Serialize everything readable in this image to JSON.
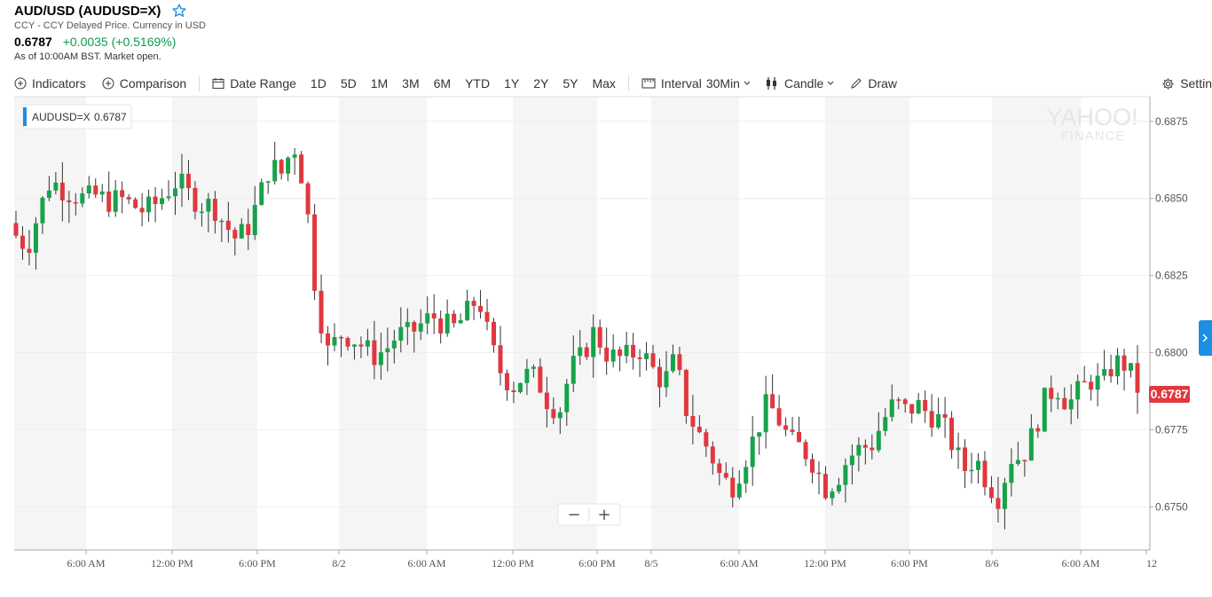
{
  "header": {
    "title": "AUD/USD (AUDUSD=X)",
    "subtitle": "CCY - CCY Delayed Price. Currency in USD",
    "price": "0.6787",
    "change": "+0.0035 (+0.5169%)",
    "as_of": "As of 10:00AM BST. Market open."
  },
  "toolbar": {
    "indicators": "Indicators",
    "comparison": "Comparison",
    "date_range": "Date Range",
    "ranges": [
      "1D",
      "5D",
      "1M",
      "3M",
      "6M",
      "YTD",
      "1Y",
      "2Y",
      "5Y",
      "Max"
    ],
    "interval_label": "Interval",
    "interval_value": "30Min",
    "chart_type": "Candle",
    "draw": "Draw",
    "settings": "Settin"
  },
  "chart_data": {
    "type": "candlestick",
    "legend_label": "AUDUSD=X",
    "legend_value": "0.6787",
    "watermark_line1": "YAHOO!",
    "watermark_line2": "FINANCE",
    "current_price_label": "0.6787",
    "ylim": [
      0.6736,
      0.6883
    ],
    "y_ticks": [
      "0.6875",
      "0.6850",
      "0.6825",
      "0.6800",
      "0.6775",
      "0.6750"
    ],
    "x_ticks": [
      "6:00 AM",
      "12:00 PM",
      "6:00 PM",
      "8/2",
      "6:00 AM",
      "12:00 PM",
      "6:00 PM",
      "8/5",
      "6:00 AM",
      "12:00 PM",
      "6:00 PM",
      "8/6",
      "6:00 AM",
      "12"
    ],
    "close_path": [
      0.6838,
      0.6834,
      0.6846,
      0.6856,
      0.6853,
      0.6851,
      0.685,
      0.6851,
      0.6849,
      0.685,
      0.6848,
      0.6846,
      0.6848,
      0.6852,
      0.6856,
      0.6851,
      0.6848,
      0.6848,
      0.6842,
      0.6837,
      0.684,
      0.685,
      0.6861,
      0.6858,
      0.6868,
      0.6853,
      0.6817,
      0.68,
      0.6806,
      0.6805,
      0.6802,
      0.6799,
      0.6801,
      0.6806,
      0.6806,
      0.6809,
      0.6812,
      0.6809,
      0.6808,
      0.6813,
      0.6818,
      0.6803,
      0.6793,
      0.6789,
      0.6793,
      0.6792,
      0.6784,
      0.6781,
      0.6795,
      0.6799,
      0.6807,
      0.68,
      0.6798,
      0.6799,
      0.6801,
      0.6795,
      0.679,
      0.6798,
      0.6781,
      0.6774,
      0.6768,
      0.6759,
      0.6757,
      0.6765,
      0.6774,
      0.6784,
      0.6778,
      0.6771,
      0.6769,
      0.6764,
      0.6756,
      0.6759,
      0.6766,
      0.6769,
      0.677,
      0.6778,
      0.6784,
      0.6781,
      0.6783,
      0.678,
      0.6778,
      0.677,
      0.6762,
      0.6766,
      0.6758,
      0.6753,
      0.6766,
      0.6766,
      0.6774,
      0.6785,
      0.6789,
      0.6783,
      0.6788,
      0.6791,
      0.679,
      0.6797,
      0.6796,
      0.6789
    ]
  },
  "zoom": {
    "minus": "−",
    "plus": "+"
  }
}
